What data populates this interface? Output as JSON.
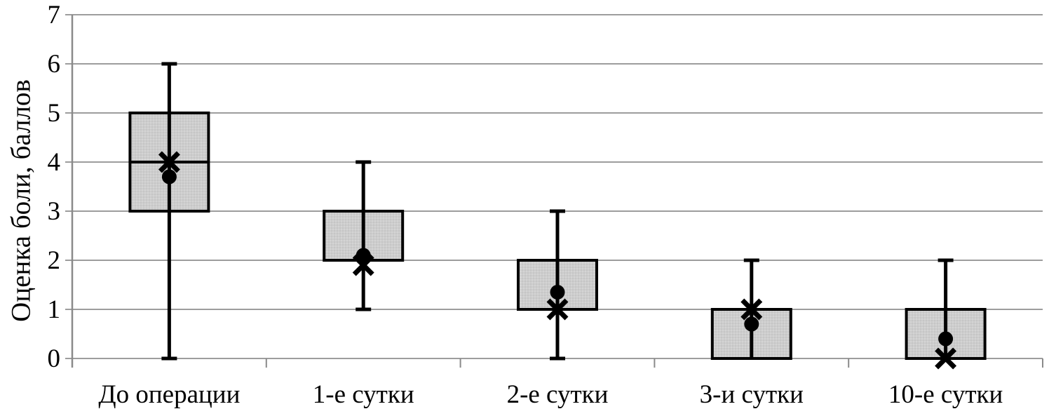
{
  "chart_data": {
    "type": "boxplot",
    "title": "",
    "ylabel": "Оценка боли, баллов",
    "xlabel": "",
    "ylim": [
      0,
      7
    ],
    "yticks": [
      0,
      1,
      2,
      3,
      4,
      5,
      6,
      7
    ],
    "grid": true,
    "legend": false,
    "categories": [
      "До операции",
      "1-е сутки",
      "2-е сутки",
      "3-и сутки",
      "10-е сутки"
    ],
    "boxes": [
      {
        "category": "До операции",
        "q1": 3,
        "median": 4,
        "q3": 5,
        "whisker_low": 0,
        "whisker_high": 6,
        "x_marker": 4.0,
        "dot_marker": 3.7
      },
      {
        "category": "1-е сутки",
        "q1": 2,
        "median": 2,
        "q3": 3,
        "whisker_low": 1,
        "whisker_high": 4,
        "x_marker": 1.9,
        "dot_marker": 2.1
      },
      {
        "category": "2-е сутки",
        "q1": 1,
        "median": 1,
        "q3": 2,
        "whisker_low": 0,
        "whisker_high": 3,
        "x_marker": 1.0,
        "dot_marker": 1.35
      },
      {
        "category": "3-и сутки",
        "q1": 0,
        "median": 1,
        "q3": 1,
        "whisker_low": 0,
        "whisker_high": 2,
        "x_marker": 1.0,
        "dot_marker": 0.7
      },
      {
        "category": "10-е сутки",
        "q1": 0,
        "median": 0,
        "q3": 1,
        "whisker_low": 0,
        "whisker_high": 2,
        "x_marker": 0.0,
        "dot_marker": 0.4
      }
    ],
    "colors": {
      "box_fill": "#cdcdcd",
      "box_border": "#000000",
      "gridline": "#9d9d9d",
      "axis": "#8a8a8a",
      "marker": "#000000",
      "text": "#000000"
    }
  }
}
